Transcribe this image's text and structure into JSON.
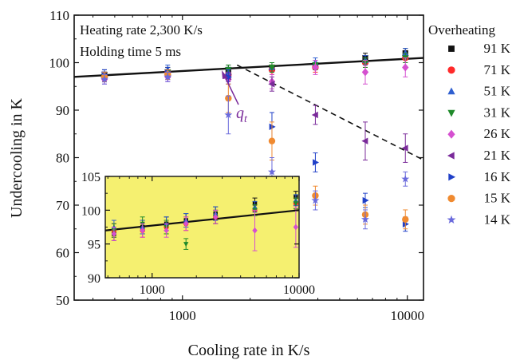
{
  "chart_data": [
    {
      "type": "scatter",
      "xlabel": "Cooling rate in K/s",
      "ylabel": "Undercooling in K",
      "x_scale": "log",
      "xlim": [
        330,
        11800
      ],
      "ylim": [
        50,
        110
      ],
      "x_ticks": [
        1000,
        10000
      ],
      "x_tick_labels": [
        "1000",
        "10000"
      ],
      "y_ticks": [
        50,
        60,
        70,
        80,
        90,
        100,
        110
      ],
      "y_tick_labels": [
        "50",
        "60",
        "70",
        "80",
        "90",
        "100",
        "110"
      ],
      "grid": false,
      "annotations": [
        "Heating rate 2,300 K/s",
        "Holding time 5 ms"
      ],
      "qt_label": "q",
      "qt_subscript": "t",
      "legend_title": "Overheating",
      "legend_position": "right",
      "series": [
        {
          "name": "91 K",
          "marker": "square",
          "color": "#111111",
          "points": [
            [
              450,
              97.5,
              1
            ],
            [
              860,
              98,
              1
            ],
            [
              1600,
              98.5,
              1
            ],
            [
              2500,
              99,
              1
            ],
            [
              3900,
              99.5,
              1
            ],
            [
              6500,
              101,
              1
            ],
            [
              9800,
              102,
              1
            ]
          ]
        },
        {
          "name": "71 K",
          "marker": "circle",
          "color": "#ff2a2a",
          "points": [
            [
              450,
              97,
              1
            ],
            [
              860,
              98,
              1
            ],
            [
              1600,
              97.5,
              1
            ],
            [
              2500,
              98.5,
              1
            ],
            [
              3900,
              99,
              1
            ],
            [
              6500,
              100,
              1
            ],
            [
              9800,
              101,
              1
            ]
          ]
        },
        {
          "name": "51 K",
          "marker": "triangle-up",
          "color": "#2f5fd0",
          "points": [
            [
              450,
              97.5,
              1
            ],
            [
              860,
              98.5,
              1
            ],
            [
              1600,
              98,
              1
            ],
            [
              2500,
              99,
              1
            ],
            [
              3900,
              100,
              1
            ],
            [
              6500,
              100.5,
              1
            ],
            [
              9800,
              102,
              1
            ]
          ]
        },
        {
          "name": "31 K",
          "marker": "triangle-down",
          "color": "#1f8a2a",
          "points": [
            [
              450,
              97,
              1
            ],
            [
              860,
              98,
              1
            ],
            [
              1600,
              98.5,
              1
            ],
            [
              2500,
              99,
              1
            ],
            [
              3900,
              99.5,
              1
            ],
            [
              6500,
              100,
              1
            ],
            [
              9800,
              101,
              1
            ]
          ]
        },
        {
          "name": "26 K",
          "marker": "diamond",
          "color": "#d550d0",
          "points": [
            [
              450,
              96.5,
              1
            ],
            [
              860,
              97,
              1
            ],
            [
              1600,
              96.5,
              1
            ],
            [
              2500,
              96,
              1.5
            ],
            [
              3900,
              99,
              1.5
            ],
            [
              6500,
              98,
              2.5
            ],
            [
              9800,
              99,
              2
            ]
          ]
        },
        {
          "name": "21 K",
          "marker": "triangle-left",
          "color": "#7a2a9a",
          "points": [
            [
              450,
              97,
              1
            ],
            [
              860,
              97.5,
              1
            ],
            [
              1600,
              97,
              1
            ],
            [
              2500,
              95.5,
              1.5
            ],
            [
              3900,
              89,
              2
            ],
            [
              6500,
              83.5,
              4
            ],
            [
              9800,
              82,
              3
            ]
          ]
        },
        {
          "name": "16 K",
          "marker": "triangle-right",
          "color": "#2040c8",
          "points": [
            [
              450,
              97.5,
              1
            ],
            [
              860,
              98,
              1
            ],
            [
              1600,
              97,
              1.5
            ],
            [
              2500,
              86.5,
              3
            ],
            [
              3900,
              79,
              2
            ],
            [
              6500,
              71,
              1.5
            ],
            [
              9800,
              66,
              1.5
            ]
          ]
        },
        {
          "name": "15 K",
          "marker": "circle",
          "color": "#f08a30",
          "points": [
            [
              450,
              97,
              1
            ],
            [
              860,
              97.5,
              1
            ],
            [
              1600,
              92.5,
              3
            ],
            [
              2500,
              83.5,
              4
            ],
            [
              3900,
              72,
              2
            ],
            [
              6500,
              68,
              2
            ],
            [
              9800,
              67,
              2
            ]
          ]
        },
        {
          "name": "14 K",
          "marker": "star",
          "color": "#6a6adc",
          "points": [
            [
              450,
              96.5,
              1
            ],
            [
              860,
              97,
              1
            ],
            [
              1600,
              89,
              4
            ],
            [
              2500,
              77,
              3
            ],
            [
              3900,
              71,
              2
            ],
            [
              6500,
              67,
              2
            ],
            [
              9800,
              75.5,
              1.5
            ]
          ]
        }
      ],
      "fit_line": {
        "x": [
          330,
          11800
        ],
        "y": [
          97,
          101
        ]
      },
      "dashed_line": {
        "x": [
          1750,
          11800
        ],
        "y": [
          99.5,
          79.5
        ]
      }
    },
    {
      "type": "scatter",
      "role": "inset",
      "background": "#f5f070",
      "x_scale": "log",
      "xlim": [
        480,
        10000
      ],
      "ylim": [
        90,
        105
      ],
      "x_ticks": [
        1000,
        10000
      ],
      "x_tick_labels": [
        "1000",
        "10000"
      ],
      "y_ticks": [
        90,
        95,
        100,
        105
      ],
      "y_tick_labels": [
        "90",
        "95",
        "100",
        "105"
      ],
      "fit_line": {
        "x": [
          480,
          10000
        ],
        "y": [
          97,
          100
        ]
      },
      "series": [
        {
          "name": "91 K",
          "marker": "square",
          "color": "#111111",
          "points": [
            [
              550,
              96.5,
              1
            ],
            [
              860,
              97.5,
              1
            ],
            [
              1250,
              98,
              1
            ],
            [
              1700,
              98.5,
              1
            ],
            [
              2700,
              99.5,
              1
            ],
            [
              5000,
              101,
              0.8
            ],
            [
              9500,
              102,
              0.8
            ]
          ]
        },
        {
          "name": "71 K",
          "marker": "circle",
          "color": "#ff2a2a",
          "points": [
            [
              550,
              97,
              1
            ],
            [
              860,
              97,
              1
            ],
            [
              1250,
              97.5,
              1
            ],
            [
              1700,
              98,
              1
            ],
            [
              2700,
              99,
              1
            ],
            [
              5000,
              100,
              0.8
            ],
            [
              9500,
              101,
              0.8
            ]
          ]
        },
        {
          "name": "51 K",
          "marker": "triangle-up",
          "color": "#2f5fd0",
          "points": [
            [
              550,
              97.5,
              1
            ],
            [
              860,
              97.5,
              1
            ],
            [
              1250,
              98,
              1
            ],
            [
              1700,
              98.5,
              1
            ],
            [
              2700,
              99.5,
              1
            ],
            [
              5000,
              100.5,
              0.8
            ],
            [
              9500,
              101.5,
              0.8
            ]
          ]
        },
        {
          "name": "31 K",
          "marker": "triangle-down",
          "color": "#1f8a2a",
          "points": [
            [
              550,
              97,
              1
            ],
            [
              860,
              98,
              1
            ],
            [
              1250,
              97.5,
              1
            ],
            [
              1700,
              95,
              0.8
            ],
            [
              2700,
              99,
              1
            ],
            [
              5000,
              100,
              0.8
            ],
            [
              9500,
              101,
              0.8
            ]
          ]
        },
        {
          "name": "26 K",
          "marker": "diamond",
          "color": "#d550d0",
          "points": [
            [
              550,
              96.5,
              1
            ],
            [
              860,
              97,
              1
            ],
            [
              1250,
              97,
              1
            ],
            [
              1700,
              98,
              1
            ],
            [
              2700,
              99,
              1
            ],
            [
              5000,
              97,
              3
            ],
            [
              9500,
              97.5,
              3
            ]
          ]
        }
      ]
    }
  ]
}
